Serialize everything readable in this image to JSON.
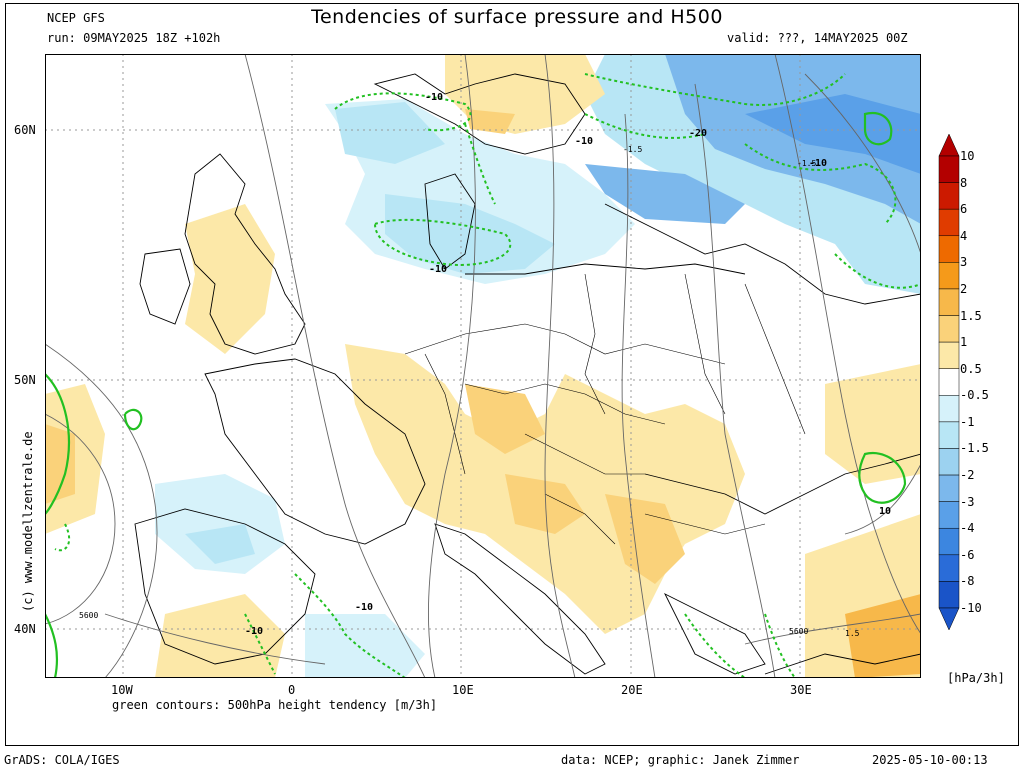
{
  "header": {
    "source": "NCEP GFS",
    "run": "run: 09MAY2025 18Z +102h",
    "valid": "valid: ???, 14MAY2025 00Z",
    "title": "Tendencies of surface pressure and H500"
  },
  "axes": {
    "lat_labels": [
      "60N",
      "50N",
      "40N"
    ],
    "lon_labels": [
      "10W",
      "0",
      "10E",
      "20E",
      "30E"
    ]
  },
  "map_labels": {
    "contour_values": [
      "-10",
      "-10",
      "-10",
      "-20",
      "-10",
      "-10",
      "-10",
      "10",
      "-1.5",
      "-1.5",
      "1.5",
      "5600",
      "5600"
    ]
  },
  "colorbar": {
    "ticks": [
      "10",
      "8",
      "6",
      "4",
      "3",
      "2",
      "1.5",
      "1",
      "0.5",
      "-0.5",
      "-1",
      "-1.5",
      "-2",
      "-3",
      "-4",
      "-6",
      "-8",
      "-10"
    ],
    "colors": [
      "#b30000",
      "#cc1a00",
      "#e03c00",
      "#ee6a00",
      "#f59a1a",
      "#f7b84a",
      "#fad27a",
      "#fce8a8",
      "#ffffff",
      "#d6f2fa",
      "#b8e6f5",
      "#9cd2f0",
      "#7cb8ec",
      "#5aa0e8",
      "#3c86e0",
      "#2a6cd8",
      "#1a54c8"
    ],
    "unit": "[hPa/3h]"
  },
  "footer": {
    "legend": "green contours: 500hPa height tendency [m/3h]",
    "grads": "GrADS: COLA/IGES",
    "data_credit": "data: NCEP; graphic: Janek Zimmer",
    "timestamp": "2025-05-10-00:13",
    "watermark": "(c) www.modellzentrale.de"
  }
}
